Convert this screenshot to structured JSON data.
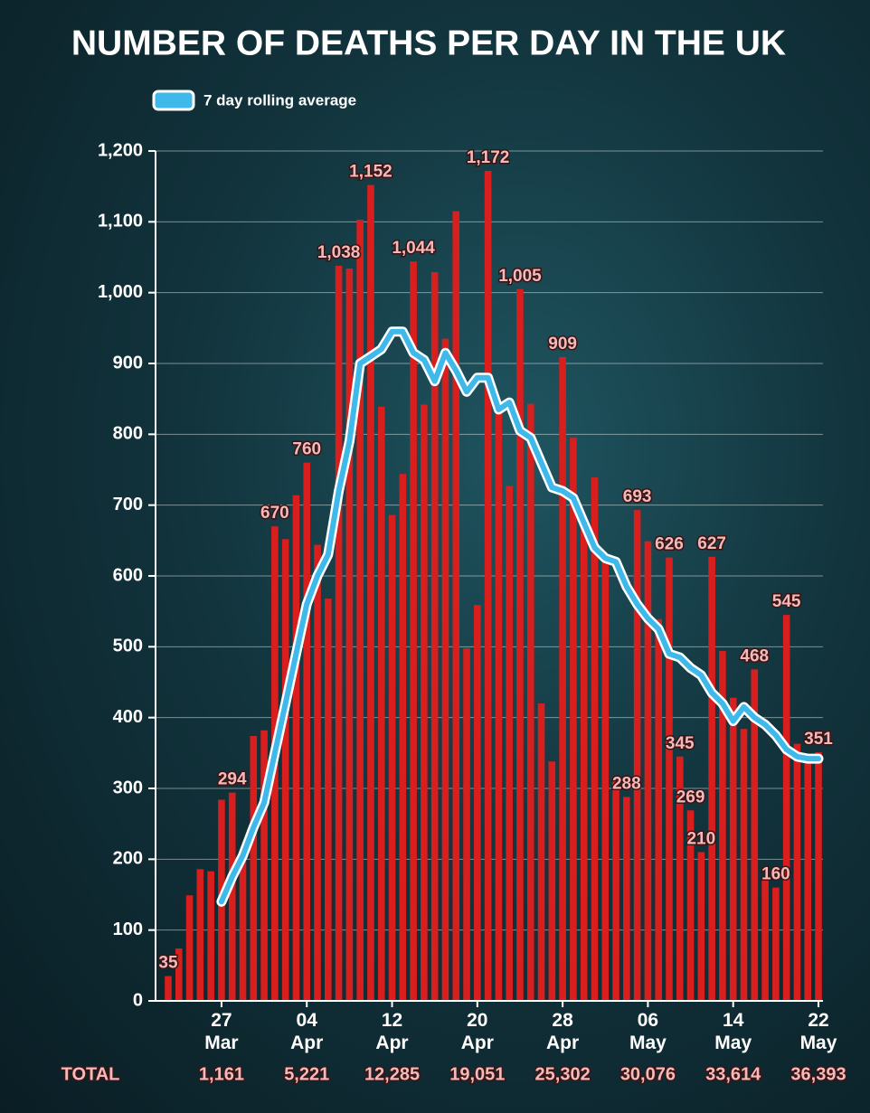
{
  "chart_data": {
    "type": "bar",
    "title": "NUMBER OF DEATHS PER DAY IN THE UK",
    "categories": [
      null,
      null,
      null,
      null,
      null,
      "27 Mar",
      null,
      null,
      null,
      null,
      null,
      null,
      null,
      "04 Apr",
      null,
      null,
      null,
      null,
      null,
      null,
      null,
      "12 Apr",
      null,
      null,
      null,
      null,
      null,
      null,
      null,
      "20 Apr",
      null,
      null,
      null,
      null,
      null,
      null,
      null,
      "28 Apr",
      null,
      null,
      null,
      null,
      null,
      null,
      null,
      "06 May",
      null,
      null,
      null,
      null,
      null,
      null,
      null,
      "14 May",
      null,
      null,
      null,
      null,
      null,
      null,
      null,
      "22 May"
    ],
    "series": [
      {
        "type": "bar",
        "color": "#d91e1e",
        "values": [
          35,
          74,
          149,
          186,
          183,
          284,
          294,
          214,
          374,
          382,
          670,
          652,
          714,
          760,
          644,
          568,
          1038,
          1034,
          1103,
          1152,
          839,
          686,
          744,
          1044,
          842,
          1029,
          935,
          1115,
          498,
          559,
          1172,
          837,
          727,
          1005,
          843,
          420,
          338,
          909,
          795,
          674,
          739,
          621,
          315,
          288,
          693,
          649,
          539,
          626,
          345,
          269,
          210,
          627,
          494,
          428,
          384,
          468,
          170,
          160,
          545,
          363,
          338,
          351
        ],
        "value_labels": [
          "35",
          null,
          null,
          null,
          null,
          null,
          "294",
          null,
          null,
          null,
          "670",
          null,
          null,
          "760",
          null,
          null,
          "1,038",
          null,
          null,
          "1,152",
          null,
          null,
          null,
          "1,044",
          null,
          null,
          null,
          null,
          null,
          null,
          "1,172",
          null,
          null,
          "1,005",
          null,
          null,
          null,
          "909",
          null,
          null,
          null,
          null,
          null,
          "288",
          "693",
          null,
          null,
          "626",
          "345",
          "269",
          "210",
          "627",
          null,
          null,
          null,
          "468",
          null,
          "160",
          "545",
          null,
          null,
          "351"
        ]
      },
      {
        "type": "line",
        "name": "7 day rolling average",
        "color": "#3fb8ea",
        "values": [
          null,
          null,
          null,
          null,
          null,
          140,
          175,
          205,
          245,
          280,
          350,
          420,
          490,
          560,
          600,
          630,
          720,
          790,
          900,
          910,
          920,
          945,
          945,
          915,
          905,
          875,
          915,
          890,
          860,
          880,
          880,
          835,
          845,
          805,
          795,
          760,
          725,
          720,
          710,
          675,
          640,
          625,
          620,
          585,
          560,
          540,
          525,
          490,
          485,
          470,
          460,
          435,
          420,
          395,
          415,
          400,
          390,
          375,
          355,
          345,
          342,
          342
        ]
      }
    ],
    "ylim": [
      0,
      1200
    ],
    "yticks": [
      0,
      100,
      200,
      300,
      400,
      500,
      600,
      700,
      800,
      900,
      {
        "value": 1000,
        "label": "1,000"
      },
      {
        "value": 1100,
        "label": "1,100"
      },
      {
        "value": 1200,
        "label": "1,200"
      }
    ],
    "grid": true,
    "totals": {
      "label": "TOTAL",
      "values": [
        "1,161",
        "5,221",
        "12,285",
        "19,051",
        "25,302",
        "30,076",
        "33,614",
        "36,393"
      ]
    }
  }
}
